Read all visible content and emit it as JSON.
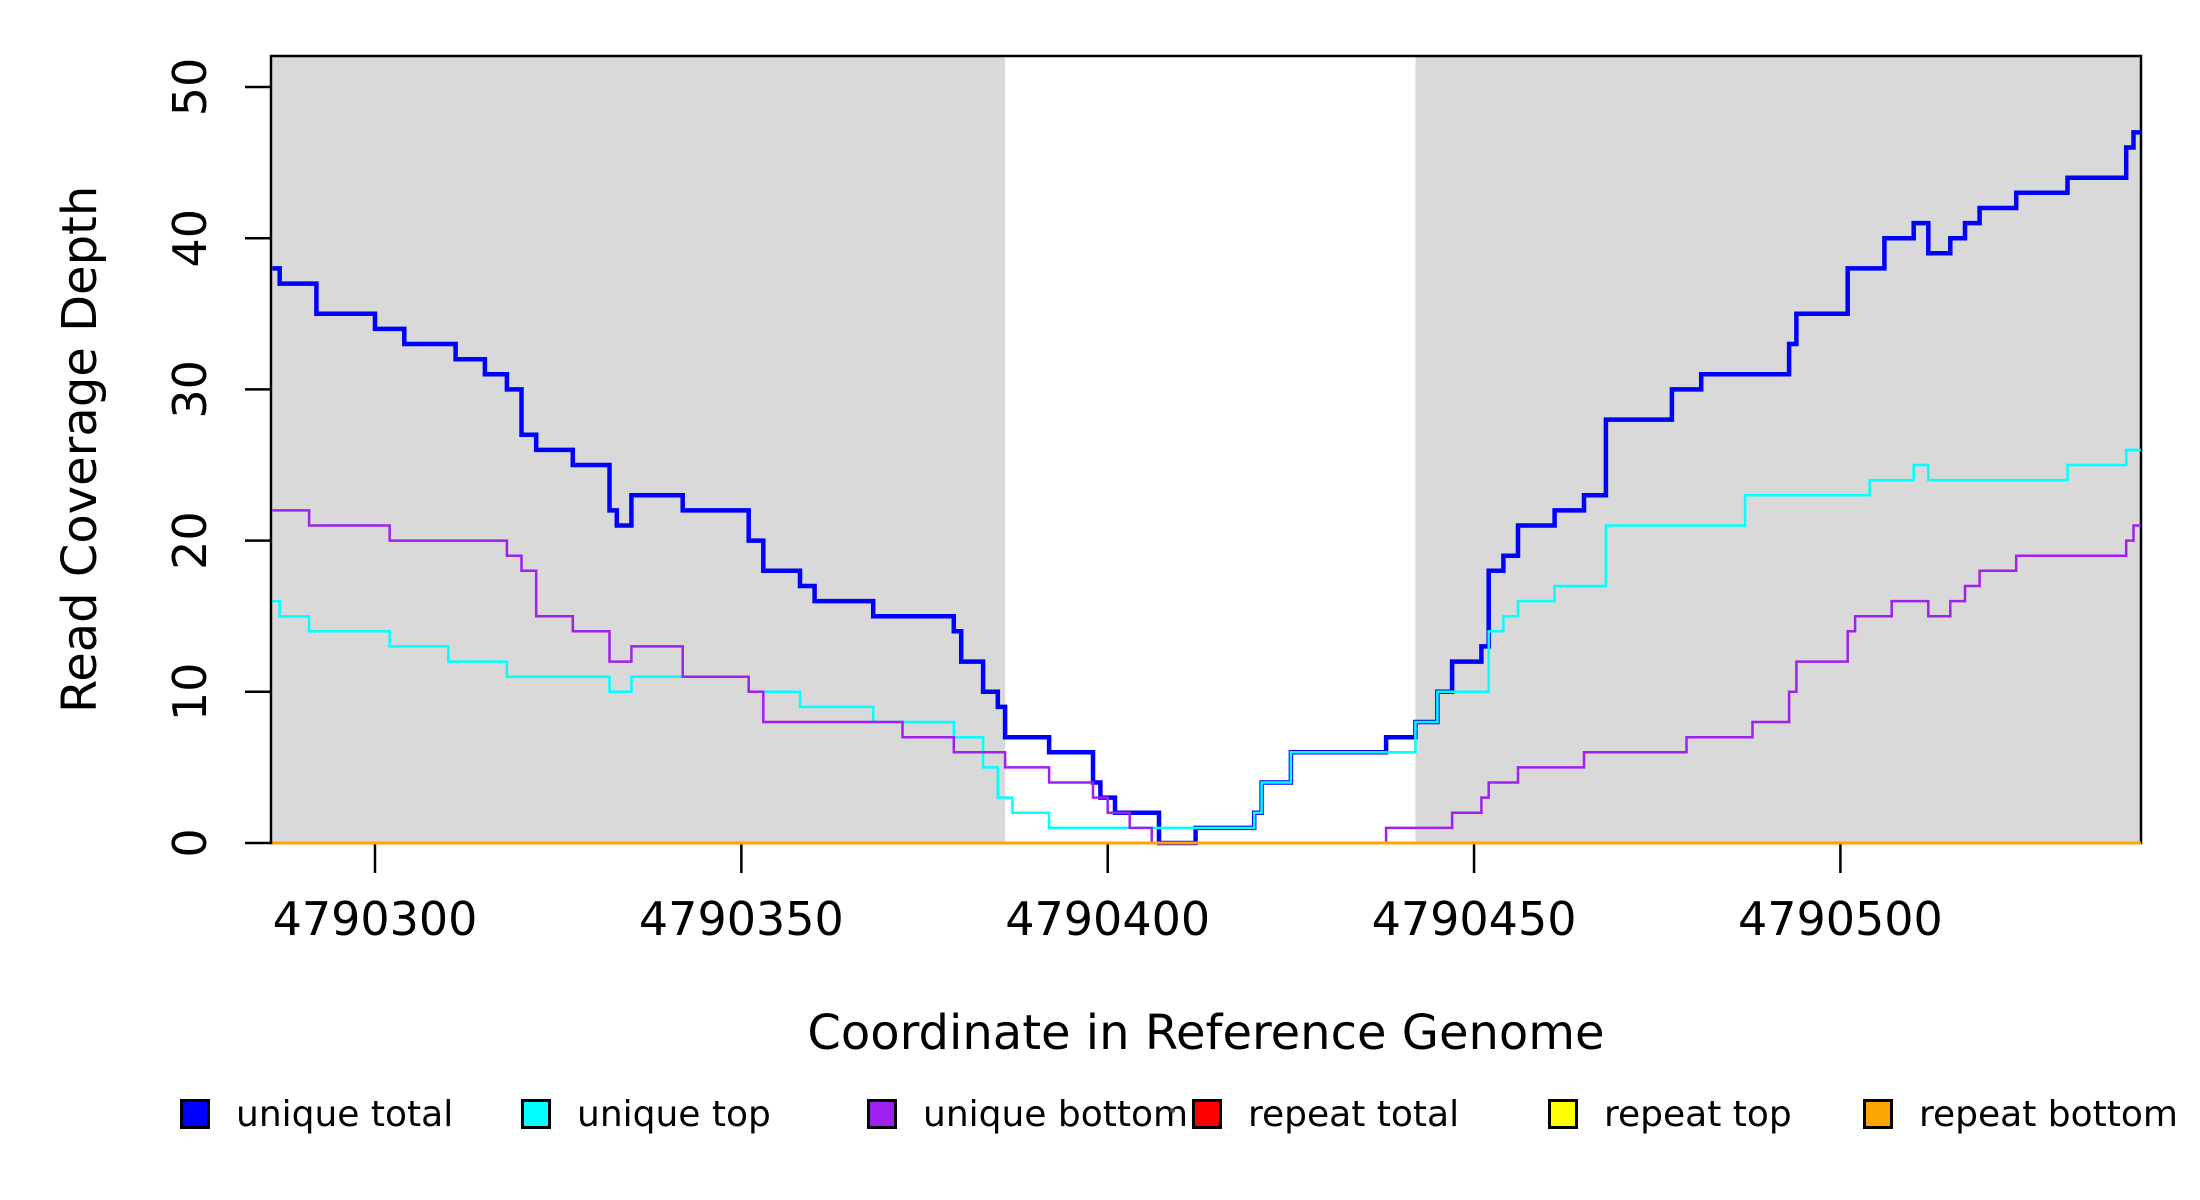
{
  "chart_data": {
    "type": "line",
    "subtype": "step",
    "xlabel": "Coordinate in Reference Genome",
    "ylabel": "Read Coverage Depth",
    "x_domain": [
      4790286,
      4790541
    ],
    "ylim": [
      0,
      52
    ],
    "grid": false,
    "x_ticks": [
      4790300,
      4790350,
      4790400,
      4790450,
      4790500
    ],
    "y_ticks": [
      0,
      10,
      20,
      30,
      40,
      50
    ],
    "shaded_regions": [
      {
        "from": 4790286,
        "to": 4790386,
        "color": "#D9D9D9"
      },
      {
        "from": 4790442,
        "to": 4790541,
        "color": "#D9D9D9"
      }
    ],
    "series": [
      {
        "name": "unique total",
        "color": "#0000FF",
        "width": 4.5,
        "points": [
          [
            4790286,
            38
          ],
          [
            4790287,
            37
          ],
          [
            4790292,
            35
          ],
          [
            4790300,
            34
          ],
          [
            4790304,
            33
          ],
          [
            4790311,
            32
          ],
          [
            4790315,
            31
          ],
          [
            4790318,
            30
          ],
          [
            4790320,
            27
          ],
          [
            4790322,
            26
          ],
          [
            4790327,
            25
          ],
          [
            4790332,
            22
          ],
          [
            4790333,
            21
          ],
          [
            4790335,
            23
          ],
          [
            4790342,
            22
          ],
          [
            4790351,
            20
          ],
          [
            4790353,
            18
          ],
          [
            4790358,
            17
          ],
          [
            4790360,
            16
          ],
          [
            4790368,
            15
          ],
          [
            4790379,
            14
          ],
          [
            4790380,
            12
          ],
          [
            4790383,
            10
          ],
          [
            4790385,
            9
          ],
          [
            4790386,
            7
          ],
          [
            4790392,
            6
          ],
          [
            4790398,
            4
          ],
          [
            4790399,
            3
          ],
          [
            4790401,
            2
          ],
          [
            4790407,
            0
          ],
          [
            4790412,
            1
          ],
          [
            4790420,
            2
          ],
          [
            4790421,
            4
          ],
          [
            4790425,
            6
          ],
          [
            4790438,
            7
          ],
          [
            4790442,
            8
          ],
          [
            4790445,
            10
          ],
          [
            4790447,
            12
          ],
          [
            4790451,
            13
          ],
          [
            4790452,
            18
          ],
          [
            4790454,
            19
          ],
          [
            4790456,
            21
          ],
          [
            4790461,
            22
          ],
          [
            4790465,
            23
          ],
          [
            4790468,
            28
          ],
          [
            4790477,
            30
          ],
          [
            4790481,
            31
          ],
          [
            4790493,
            33
          ],
          [
            4790494,
            35
          ],
          [
            4790501,
            38
          ],
          [
            4790506,
            40
          ],
          [
            4790510,
            41
          ],
          [
            4790512,
            39
          ],
          [
            4790515,
            40
          ],
          [
            4790517,
            41
          ],
          [
            4790519,
            42
          ],
          [
            4790524,
            43
          ],
          [
            4790531,
            44
          ],
          [
            4790539,
            46
          ],
          [
            4790540,
            47
          ]
        ]
      },
      {
        "name": "unique top",
        "color": "#00FFFF",
        "width": 2.5,
        "points": [
          [
            4790286,
            16
          ],
          [
            4790287,
            15
          ],
          [
            4790291,
            14
          ],
          [
            4790302,
            13
          ],
          [
            4790310,
            12
          ],
          [
            4790318,
            11
          ],
          [
            4790332,
            10
          ],
          [
            4790335,
            11
          ],
          [
            4790351,
            10
          ],
          [
            4790358,
            9
          ],
          [
            4790368,
            8
          ],
          [
            4790379,
            7
          ],
          [
            4790383,
            5
          ],
          [
            4790385,
            3
          ],
          [
            4790387,
            2
          ],
          [
            4790392,
            1
          ],
          [
            4790420,
            2
          ],
          [
            4790421,
            4
          ],
          [
            4790425,
            6
          ],
          [
            4790442,
            8
          ],
          [
            4790445,
            10
          ],
          [
            4790452,
            14
          ],
          [
            4790454,
            15
          ],
          [
            4790456,
            16
          ],
          [
            4790461,
            17
          ],
          [
            4790468,
            21
          ],
          [
            4790487,
            23
          ],
          [
            4790504,
            24
          ],
          [
            4790510,
            25
          ],
          [
            4790512,
            24
          ],
          [
            4790531,
            25
          ],
          [
            4790539,
            26
          ]
        ]
      },
      {
        "name": "unique bottom",
        "color": "#A020F0",
        "width": 2.5,
        "points": [
          [
            4790286,
            22
          ],
          [
            4790291,
            21
          ],
          [
            4790302,
            20
          ],
          [
            4790318,
            19
          ],
          [
            4790320,
            18
          ],
          [
            4790322,
            15
          ],
          [
            4790327,
            14
          ],
          [
            4790332,
            12
          ],
          [
            4790335,
            13
          ],
          [
            4790342,
            11
          ],
          [
            4790351,
            10
          ],
          [
            4790353,
            8
          ],
          [
            4790372,
            7
          ],
          [
            4790379,
            6
          ],
          [
            4790386,
            5
          ],
          [
            4790392,
            4
          ],
          [
            4790398,
            3
          ],
          [
            4790400,
            2
          ],
          [
            4790403,
            1
          ],
          [
            4790406,
            0
          ],
          [
            4790438,
            1
          ],
          [
            4790447,
            2
          ],
          [
            4790451,
            3
          ],
          [
            4790452,
            4
          ],
          [
            4790456,
            5
          ],
          [
            4790465,
            6
          ],
          [
            4790479,
            7
          ],
          [
            4790488,
            8
          ],
          [
            4790493,
            10
          ],
          [
            4790494,
            12
          ],
          [
            4790501,
            14
          ],
          [
            4790502,
            15
          ],
          [
            4790507,
            16
          ],
          [
            4790512,
            15
          ],
          [
            4790515,
            16
          ],
          [
            4790517,
            17
          ],
          [
            4790519,
            18
          ],
          [
            4790524,
            19
          ],
          [
            4790539,
            20
          ],
          [
            4790540,
            21
          ]
        ]
      },
      {
        "name": "repeat total",
        "color": "#FF0000",
        "width": 3,
        "points": [
          [
            4790286,
            0
          ]
        ]
      },
      {
        "name": "repeat top",
        "color": "#FFFF00",
        "width": 3,
        "points": [
          [
            4790286,
            0
          ]
        ]
      },
      {
        "name": "repeat bottom",
        "color": "#FFA500",
        "width": 3,
        "points": [
          [
            4790286,
            0
          ]
        ]
      }
    ]
  },
  "legend": {
    "items": [
      {
        "label": "unique total",
        "color": "#0000FF"
      },
      {
        "label": "unique top",
        "color": "#00FFFF"
      },
      {
        "label": "unique bottom",
        "color": "#A020F0"
      },
      {
        "label": "repeat total",
        "color": "#FF0000"
      },
      {
        "label": "repeat top",
        "color": "#FFFF00"
      },
      {
        "label": "repeat bottom",
        "color": "#FFA500"
      }
    ]
  }
}
